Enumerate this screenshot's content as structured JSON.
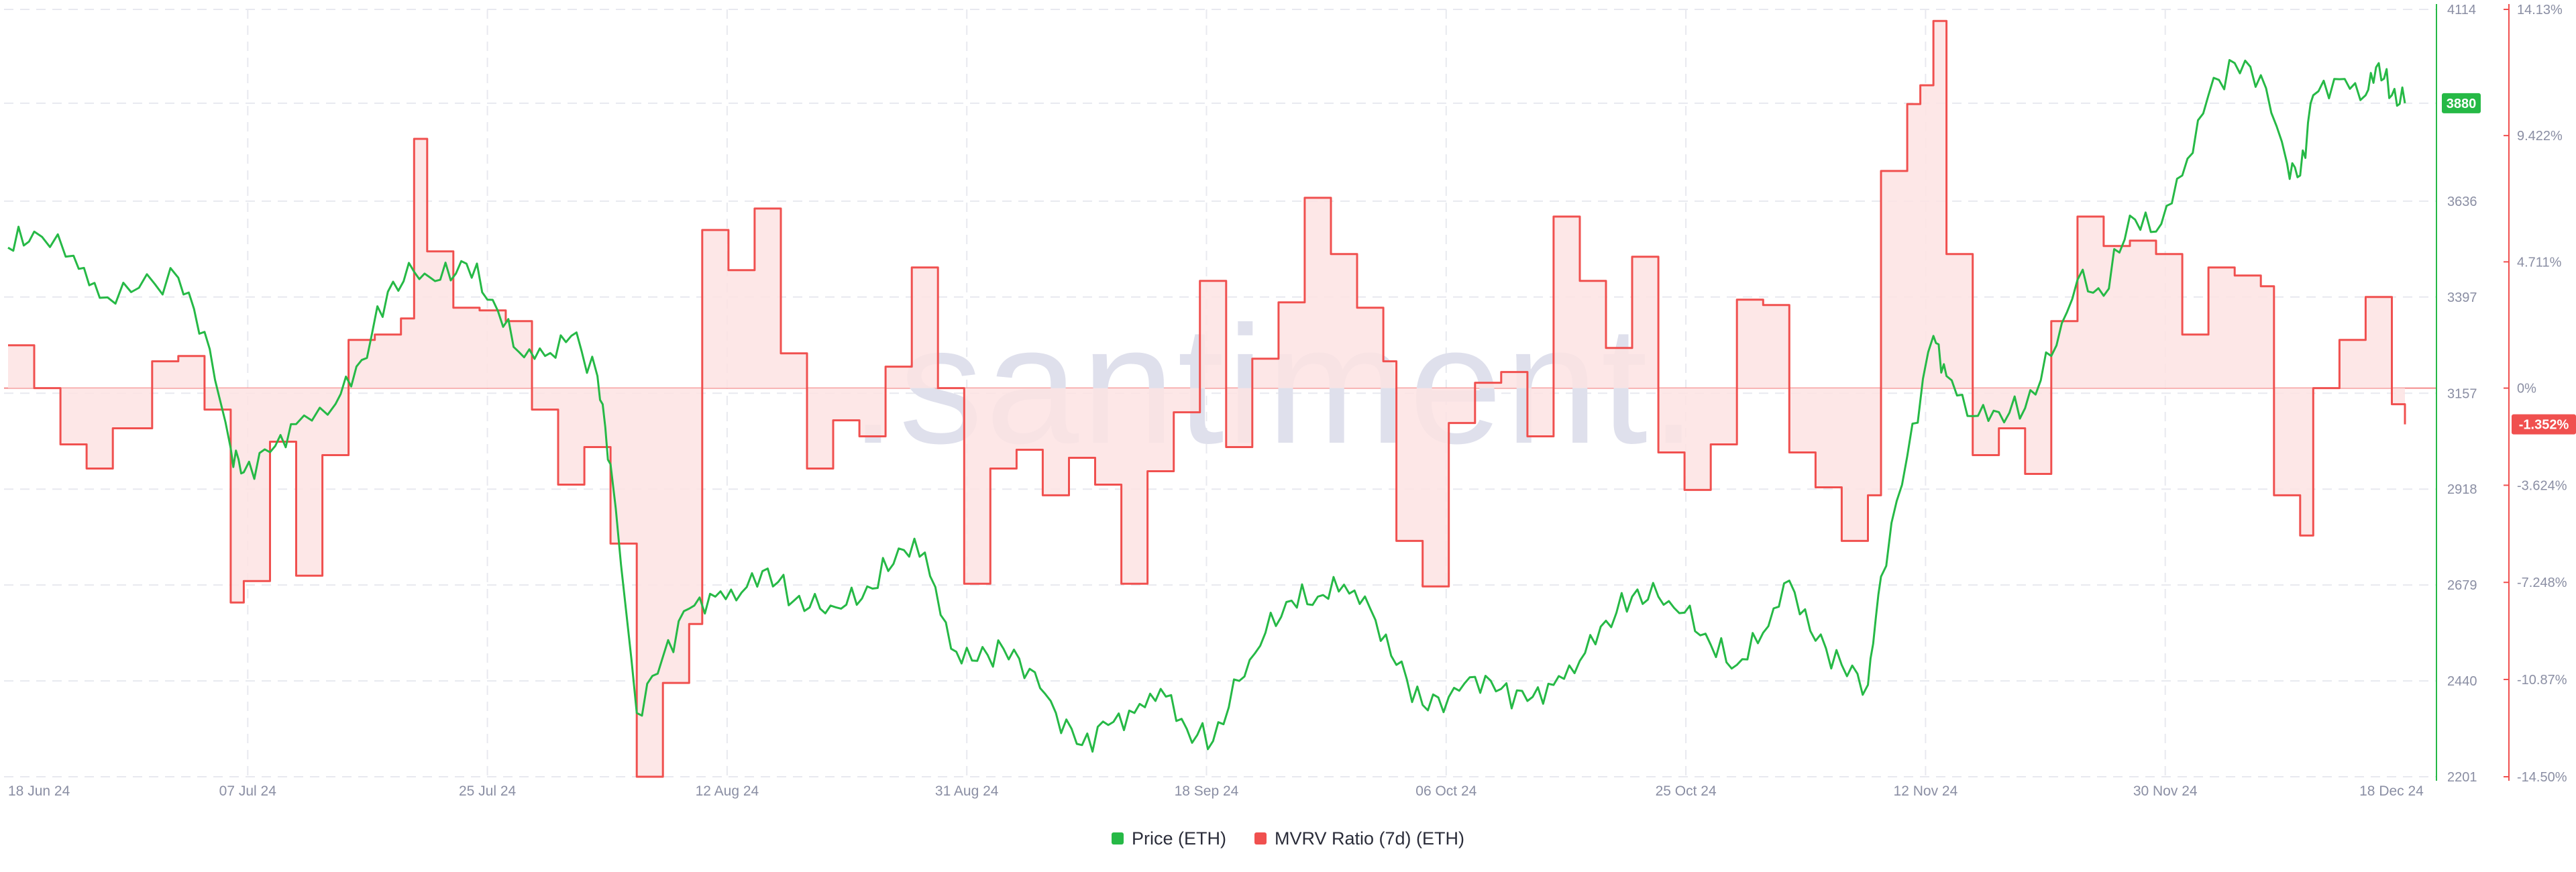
{
  "watermark": ".santiment.",
  "chart_data": {
    "type": "line",
    "x_labels": [
      "18 Jun 24",
      "07 Jul 24",
      "25 Jul 24",
      "12 Aug 24",
      "31 Aug 24",
      "18 Sep 24",
      "06 Oct 24",
      "25 Oct 24",
      "12 Nov 24",
      "30 Nov 24",
      "18 Dec 24"
    ],
    "x_range": [
      "2024-06-18",
      "2024-12-18"
    ],
    "price_axis": {
      "ticks": [
        2201,
        2440,
        2679,
        2918,
        3157,
        3397,
        3636,
        3880,
        4114
      ],
      "range": [
        2201,
        4114
      ],
      "current_label": "3880"
    },
    "mvrv_axis": {
      "ticks": [
        "14.13%",
        "9.422%",
        "4.711%",
        "0%",
        "-3.624%",
        "-7.248%",
        "-10.87%",
        "-14.50%"
      ],
      "range": [
        -14.5,
        14.13
      ],
      "current_label": "-1.352%"
    },
    "colors": {
      "price": "#26b946",
      "mvrv": "#f0504f",
      "mvrv_fill": "#fde3e3",
      "zero_line": "#f48a8a",
      "grid": "#e8e9ef"
    },
    "grid": true,
    "legend_position": "bottom-center",
    "series": [
      {
        "name": "Price (ETH)",
        "axis": "left",
        "points": [
          [
            "2024-06-18",
            3520
          ],
          [
            "2024-06-20",
            3560
          ],
          [
            "2024-06-23",
            3500
          ],
          [
            "2024-06-25",
            3395
          ],
          [
            "2024-06-28",
            3420
          ],
          [
            "2024-07-01",
            3445
          ],
          [
            "2024-07-03",
            3310
          ],
          [
            "2024-07-05",
            3020
          ],
          [
            "2024-07-06",
            2960
          ],
          [
            "2024-07-08",
            3010
          ],
          [
            "2024-07-10",
            3080
          ],
          [
            "2024-07-13",
            3130
          ],
          [
            "2024-07-15",
            3240
          ],
          [
            "2024-07-17",
            3410
          ],
          [
            "2024-07-19",
            3460
          ],
          [
            "2024-07-21",
            3440
          ],
          [
            "2024-07-23",
            3480
          ],
          [
            "2024-07-25",
            3390
          ],
          [
            "2024-07-27",
            3260
          ],
          [
            "2024-07-29",
            3250
          ],
          [
            "2024-07-31",
            3300
          ],
          [
            "2024-08-02",
            3200
          ],
          [
            "2024-08-03",
            2980
          ],
          [
            "2024-08-05",
            2360
          ],
          [
            "2024-08-07",
            2500
          ],
          [
            "2024-08-09",
            2620
          ],
          [
            "2024-08-11",
            2650
          ],
          [
            "2024-08-13",
            2660
          ],
          [
            "2024-08-15",
            2720
          ],
          [
            "2024-08-17",
            2640
          ],
          [
            "2024-08-19",
            2620
          ],
          [
            "2024-08-21",
            2630
          ],
          [
            "2024-08-23",
            2670
          ],
          [
            "2024-08-25",
            2770
          ],
          [
            "2024-08-27",
            2760
          ],
          [
            "2024-08-29",
            2520
          ],
          [
            "2024-08-31",
            2490
          ],
          [
            "2024-09-02",
            2520
          ],
          [
            "2024-09-04",
            2470
          ],
          [
            "2024-09-06",
            2360
          ],
          [
            "2024-09-08",
            2280
          ],
          [
            "2024-09-10",
            2330
          ],
          [
            "2024-09-12",
            2360
          ],
          [
            "2024-09-14",
            2420
          ],
          [
            "2024-09-16",
            2320
          ],
          [
            "2024-09-18",
            2290
          ],
          [
            "2024-09-20",
            2440
          ],
          [
            "2024-09-22",
            2560
          ],
          [
            "2024-09-24",
            2640
          ],
          [
            "2024-09-26",
            2650
          ],
          [
            "2024-09-28",
            2680
          ],
          [
            "2024-09-30",
            2620
          ],
          [
            "2024-10-02",
            2480
          ],
          [
            "2024-10-04",
            2380
          ],
          [
            "2024-10-06",
            2400
          ],
          [
            "2024-10-08",
            2450
          ],
          [
            "2024-10-10",
            2420
          ],
          [
            "2024-10-12",
            2390
          ],
          [
            "2024-10-14",
            2430
          ],
          [
            "2024-10-16",
            2490
          ],
          [
            "2024-10-18",
            2590
          ],
          [
            "2024-10-20",
            2650
          ],
          [
            "2024-10-22",
            2650
          ],
          [
            "2024-10-24",
            2610
          ],
          [
            "2024-10-26",
            2530
          ],
          [
            "2024-10-28",
            2480
          ],
          [
            "2024-10-30",
            2560
          ],
          [
            "2024-11-01",
            2690
          ],
          [
            "2024-11-03",
            2540
          ],
          [
            "2024-11-05",
            2480
          ],
          [
            "2024-11-07",
            2430
          ],
          [
            "2024-11-08",
            2700
          ],
          [
            "2024-11-10",
            3000
          ],
          [
            "2024-11-12",
            3300
          ],
          [
            "2024-11-13",
            3200
          ],
          [
            "2024-11-15",
            3100
          ],
          [
            "2024-11-17",
            3110
          ],
          [
            "2024-11-19",
            3120
          ],
          [
            "2024-11-21",
            3250
          ],
          [
            "2024-11-23",
            3440
          ],
          [
            "2024-11-25",
            3400
          ],
          [
            "2024-11-27",
            3600
          ],
          [
            "2024-11-29",
            3560
          ],
          [
            "2024-12-01",
            3700
          ],
          [
            "2024-12-03",
            3900
          ],
          [
            "2024-12-05",
            3980
          ],
          [
            "2024-12-07",
            3950
          ],
          [
            "2024-12-09",
            3730
          ],
          [
            "2024-12-10",
            3700
          ],
          [
            "2024-12-11",
            3900
          ],
          [
            "2024-12-13",
            3940
          ],
          [
            "2024-12-15",
            3900
          ],
          [
            "2024-12-16",
            3980
          ],
          [
            "2024-12-17",
            3900
          ],
          [
            "2024-12-18",
            3880
          ]
        ]
      },
      {
        "name": "MVRV Ratio (7d) (ETH)",
        "axis": "right",
        "points": [
          [
            "2024-06-18",
            1.6
          ],
          [
            "2024-06-20",
            0.0
          ],
          [
            "2024-06-22",
            -2.1
          ],
          [
            "2024-06-24",
            -3.0
          ],
          [
            "2024-06-26",
            -1.5
          ],
          [
            "2024-06-29",
            1.0
          ],
          [
            "2024-07-01",
            1.2
          ],
          [
            "2024-07-03",
            -0.8
          ],
          [
            "2024-07-05",
            -8.0
          ],
          [
            "2024-07-06",
            -7.2
          ],
          [
            "2024-07-08",
            -2.0
          ],
          [
            "2024-07-10",
            -7.0
          ],
          [
            "2024-07-12",
            -2.5
          ],
          [
            "2024-07-14",
            1.8
          ],
          [
            "2024-07-16",
            2.0
          ],
          [
            "2024-07-18",
            2.6
          ],
          [
            "2024-07-19",
            9.3
          ],
          [
            "2024-07-20",
            5.1
          ],
          [
            "2024-07-22",
            3.0
          ],
          [
            "2024-07-24",
            2.9
          ],
          [
            "2024-07-26",
            2.5
          ],
          [
            "2024-07-28",
            -0.8
          ],
          [
            "2024-07-30",
            -3.6
          ],
          [
            "2024-08-01",
            -2.2
          ],
          [
            "2024-08-03",
            -5.8
          ],
          [
            "2024-08-05",
            -14.5
          ],
          [
            "2024-08-07",
            -11.0
          ],
          [
            "2024-08-09",
            -8.8
          ],
          [
            "2024-08-10",
            5.9
          ],
          [
            "2024-08-12",
            4.4
          ],
          [
            "2024-08-14",
            6.7
          ],
          [
            "2024-08-16",
            1.3
          ],
          [
            "2024-08-18",
            -3.0
          ],
          [
            "2024-08-20",
            -1.2
          ],
          [
            "2024-08-22",
            -1.8
          ],
          [
            "2024-08-24",
            0.8
          ],
          [
            "2024-08-26",
            4.5
          ],
          [
            "2024-08-28",
            0.0
          ],
          [
            "2024-08-30",
            -7.3
          ],
          [
            "2024-09-01",
            -3.0
          ],
          [
            "2024-09-03",
            -2.3
          ],
          [
            "2024-09-05",
            -4.0
          ],
          [
            "2024-09-07",
            -2.6
          ],
          [
            "2024-09-09",
            -3.6
          ],
          [
            "2024-09-11",
            -7.3
          ],
          [
            "2024-09-13",
            -3.1
          ],
          [
            "2024-09-15",
            -0.9
          ],
          [
            "2024-09-17",
            4.0
          ],
          [
            "2024-09-19",
            -2.2
          ],
          [
            "2024-09-21",
            1.1
          ],
          [
            "2024-09-23",
            3.2
          ],
          [
            "2024-09-25",
            7.1
          ],
          [
            "2024-09-27",
            5.0
          ],
          [
            "2024-09-29",
            3.0
          ],
          [
            "2024-10-01",
            1.0
          ],
          [
            "2024-10-02",
            -5.7
          ],
          [
            "2024-10-04",
            -7.4
          ],
          [
            "2024-10-06",
            -1.3
          ],
          [
            "2024-10-08",
            0.2
          ],
          [
            "2024-10-10",
            0.6
          ],
          [
            "2024-10-12",
            -1.8
          ],
          [
            "2024-10-14",
            6.4
          ],
          [
            "2024-10-16",
            4.0
          ],
          [
            "2024-10-18",
            1.5
          ],
          [
            "2024-10-20",
            4.9
          ],
          [
            "2024-10-22",
            -2.4
          ],
          [
            "2024-10-24",
            -3.8
          ],
          [
            "2024-10-26",
            -2.1
          ],
          [
            "2024-10-28",
            3.3
          ],
          [
            "2024-10-30",
            3.1
          ],
          [
            "2024-11-01",
            -2.4
          ],
          [
            "2024-11-03",
            -3.7
          ],
          [
            "2024-11-05",
            -5.7
          ],
          [
            "2024-11-07",
            -4.0
          ],
          [
            "2024-11-08",
            8.1
          ],
          [
            "2024-11-10",
            10.6
          ],
          [
            "2024-11-11",
            11.3
          ],
          [
            "2024-11-12",
            13.7
          ],
          [
            "2024-11-13",
            5.0
          ],
          [
            "2024-11-15",
            -2.5
          ],
          [
            "2024-11-17",
            -1.5
          ],
          [
            "2024-11-19",
            -3.2
          ],
          [
            "2024-11-21",
            2.5
          ],
          [
            "2024-11-23",
            6.4
          ],
          [
            "2024-11-25",
            5.3
          ],
          [
            "2024-11-27",
            5.5
          ],
          [
            "2024-11-29",
            5.0
          ],
          [
            "2024-12-01",
            2.0
          ],
          [
            "2024-12-03",
            4.5
          ],
          [
            "2024-12-05",
            4.2
          ],
          [
            "2024-12-07",
            3.8
          ],
          [
            "2024-12-08",
            -4.0
          ],
          [
            "2024-12-10",
            -5.5
          ],
          [
            "2024-12-11",
            0.0
          ],
          [
            "2024-12-13",
            1.8
          ],
          [
            "2024-12-15",
            3.4
          ],
          [
            "2024-12-17",
            -0.6
          ],
          [
            "2024-12-18",
            -1.352
          ]
        ]
      }
    ]
  }
}
